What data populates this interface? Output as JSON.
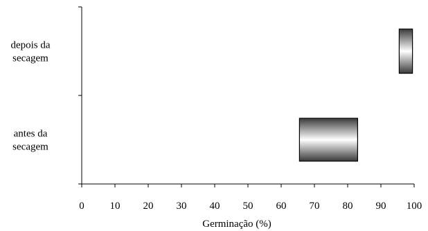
{
  "chart_data": {
    "type": "bar",
    "orientation": "horizontal",
    "style": "floating-range",
    "categories": [
      [
        "depois da",
        "secagem"
      ],
      [
        "antes da",
        "secagem"
      ]
    ],
    "ranges": [
      {
        "low": 95.5,
        "high": 99.5
      },
      {
        "low": 65.5,
        "high": 83
      }
    ],
    "xlabel": "Germinação (%)",
    "xlim": [
      0,
      100
    ],
    "xticks": [
      0,
      10,
      20,
      30,
      40,
      50,
      60,
      70,
      80,
      90,
      100
    ],
    "grid": false,
    "legend": "none",
    "colors": {
      "bar_dark": "#3a3a3a",
      "bar_light": "#ffffff",
      "axis": "#000000"
    }
  }
}
